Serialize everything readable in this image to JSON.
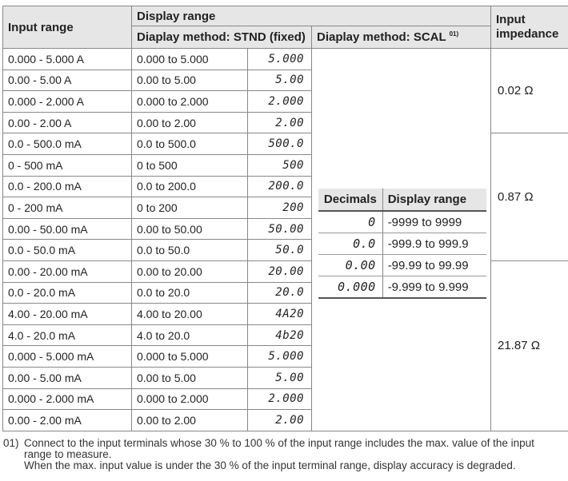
{
  "header": {
    "input_range": "Input range",
    "display_range": "Display range",
    "stnd_method": "Diaplay method: STND (fixed)",
    "scal_method": "Diaplay method: SCAL",
    "scal_note_ref": "01)",
    "input_impedance": "Input impedance"
  },
  "rows": [
    {
      "input": "0.000 - 5.000 A",
      "display": "0.000 to 5.000",
      "seg": "5.000"
    },
    {
      "input": "0.00 - 5.00 A",
      "display": "0.00 to 5.00",
      "seg": "5.00"
    },
    {
      "input": "0.000 - 2.000 A",
      "display": "0.000 to 2.000",
      "seg": "2.000"
    },
    {
      "input": "0.00 - 2.00 A",
      "display": "0.00 to 2.00",
      "seg": "2.00"
    },
    {
      "input": "0.0 - 500.0 mA",
      "display": "0.0 to 500.0",
      "seg": "500.0"
    },
    {
      "input": "0 - 500 mA",
      "display": "0 to 500",
      "seg": "500"
    },
    {
      "input": "0.0 - 200.0 mA",
      "display": "0.0 to 200.0",
      "seg": "200.0"
    },
    {
      "input": "0 - 200 mA",
      "display": "0 to 200",
      "seg": "200"
    },
    {
      "input": "0.00 - 50.00 mA",
      "display": "0.00 to 50.00",
      "seg": "50.00"
    },
    {
      "input": "0.0 - 50.0 mA",
      "display": "0.0 to 50.0",
      "seg": "50.0"
    },
    {
      "input": "0.00 - 20.00 mA",
      "display": "0.00 to 20.00",
      "seg": "20.00"
    },
    {
      "input": "0.0 - 20.0 mA",
      "display": "0.0 to 20.0",
      "seg": "20.0"
    },
    {
      "input": "4.00 - 20.00 mA",
      "display": "4.00 to 20.00",
      "seg": "4A20"
    },
    {
      "input": "4.0 - 20.0 mA",
      "display": "4.0 to 20.0",
      "seg": "4b20"
    },
    {
      "input": "0.000 - 5.000 mA",
      "display": "0.000 to 5.000",
      "seg": "5.000"
    },
    {
      "input": "0.00 - 5.00 mA",
      "display": "0.00 to 5.00",
      "seg": "5.00"
    },
    {
      "input": "0.000 - 2.000 mA",
      "display": "0.000 to 2.000",
      "seg": "2.000"
    },
    {
      "input": "0.00 - 2.00 mA",
      "display": "0.00 to 2.00",
      "seg": "2.00"
    }
  ],
  "impedance": [
    "0.02 Ω",
    "0.87 Ω",
    "21.87 Ω"
  ],
  "scal_table": {
    "decimals_header": "Decimals",
    "range_header": "Display range",
    "rows": [
      {
        "seg": "0",
        "range": "-9999 to 9999"
      },
      {
        "seg": "0.0",
        "range": "-999.9 to 999.9"
      },
      {
        "seg": "0.00",
        "range": "-99.99 to 99.99"
      },
      {
        "seg": "0.000",
        "range": "-9.999 to 9.999"
      }
    ]
  },
  "notes": {
    "number": "01)",
    "line1": "Connect to the input terminals whose 30 % to 100 % of the input range includes the max. value of the input range to measure.",
    "line2": "When the max. input value is under the 30 % of the input terminal range, display accuracy is degraded."
  }
}
